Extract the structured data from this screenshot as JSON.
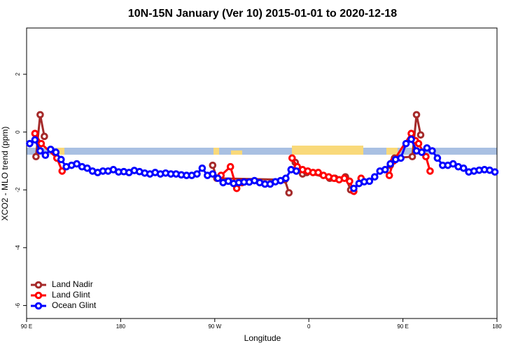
{
  "chart_data": {
    "type": "line",
    "title": "10N-15N January (Ver 10)   2015-01-01 to 2020-12-18",
    "x_label": "Longitude",
    "y_label": "XCO2 - MLO trend (ppm)",
    "xlim": [
      90,
      540
    ],
    "ylim": [
      -6.45,
      3.6
    ],
    "xticks": [
      {
        "value": 90,
        "label": "90 E"
      },
      {
        "value": 180,
        "label": "180"
      },
      {
        "value": 270,
        "label": "90 W"
      },
      {
        "value": 360,
        "label": "0"
      },
      {
        "value": 450,
        "label": "90 E"
      },
      {
        "value": 540,
        "label": "180"
      }
    ],
    "yticks": [
      2,
      0,
      -2,
      -4,
      -6
    ],
    "legend": "bottom-left",
    "series": [
      {
        "name": "Land Nadir",
        "color": "#a52a2a",
        "x": [
          99,
          103,
          107,
          null,
          268,
          272,
          337,
          341,
          null,
          347,
          350,
          354,
          358,
          380,
          385,
          395,
          400,
          null,
          438,
          442,
          459,
          463,
          467
        ],
        "values": [
          -0.85,
          0.6,
          -0.15,
          null,
          -1.15,
          -1.6,
          -1.65,
          -2.1,
          null,
          -1.05,
          -1.3,
          -1.45,
          -1.4,
          -1.6,
          -1.6,
          -1.55,
          -2.0,
          null,
          -1.15,
          -0.9,
          -0.85,
          0.6,
          -0.1
        ]
      },
      {
        "name": "Land Glint",
        "color": "#ff0000",
        "x": [
          98,
          104,
          119,
          124,
          null,
          276,
          285,
          291,
          296,
          null,
          344,
          349,
          354,
          359,
          364,
          369,
          374,
          379,
          384,
          389,
          394,
          399,
          403,
          410,
          null,
          437,
          441,
          458,
          462,
          465,
          472,
          476
        ],
        "values": [
          -0.05,
          -0.4,
          -0.9,
          -1.35,
          null,
          -1.5,
          -1.2,
          -1.95,
          -1.75,
          null,
          -0.9,
          -1.2,
          -1.3,
          -1.35,
          -1.4,
          -1.4,
          -1.5,
          -1.55,
          -1.6,
          -1.65,
          -1.6,
          -1.7,
          -2.05,
          -1.6,
          null,
          -1.5,
          -1.0,
          -0.05,
          -0.3,
          -0.4,
          -0.85,
          -1.35
        ]
      },
      {
        "name": "Ocean Glint",
        "color": "#0000ff",
        "x": [
          93,
          98,
          103,
          108,
          113,
          118,
          123,
          128,
          133,
          138,
          143,
          148,
          153,
          158,
          163,
          168,
          173,
          178,
          183,
          188,
          193,
          198,
          203,
          208,
          213,
          218,
          223,
          228,
          233,
          238,
          243,
          248,
          253,
          258,
          263,
          268,
          273,
          278,
          283,
          288,
          293,
          298,
          303,
          308,
          313,
          318,
          323,
          328,
          333,
          338,
          343,
          348,
          null,
          403,
          408,
          413,
          418,
          423,
          428,
          433,
          438,
          443,
          448,
          453,
          458,
          463,
          468,
          473,
          478,
          483,
          488,
          493,
          498,
          503,
          508,
          513,
          518,
          523,
          528,
          533,
          538
        ],
        "values": [
          -0.4,
          -0.27,
          -0.65,
          -0.8,
          -0.6,
          -0.7,
          -0.95,
          -1.2,
          -1.15,
          -1.1,
          -1.2,
          -1.25,
          -1.35,
          -1.4,
          -1.35,
          -1.35,
          -1.3,
          -1.38,
          -1.37,
          -1.4,
          -1.33,
          -1.37,
          -1.42,
          -1.45,
          -1.4,
          -1.45,
          -1.42,
          -1.45,
          -1.45,
          -1.48,
          -1.5,
          -1.5,
          -1.45,
          -1.25,
          -1.5,
          -1.45,
          -1.6,
          -1.75,
          -1.7,
          -1.78,
          -1.75,
          -1.73,
          -1.73,
          -1.68,
          -1.75,
          -1.8,
          -1.8,
          -1.72,
          -1.68,
          -1.6,
          -1.3,
          -1.35,
          null,
          -1.95,
          -1.78,
          -1.72,
          -1.7,
          -1.55,
          -1.35,
          -1.3,
          -1.1,
          -0.95,
          -0.9,
          -0.4,
          -0.25,
          -0.65,
          -0.7,
          -0.55,
          -0.65,
          -0.9,
          -1.15,
          -1.15,
          -1.1,
          -1.2,
          -1.25,
          -1.38,
          -1.35,
          -1.32,
          -1.3,
          -1.32,
          -1.38
        ]
      }
    ]
  }
}
